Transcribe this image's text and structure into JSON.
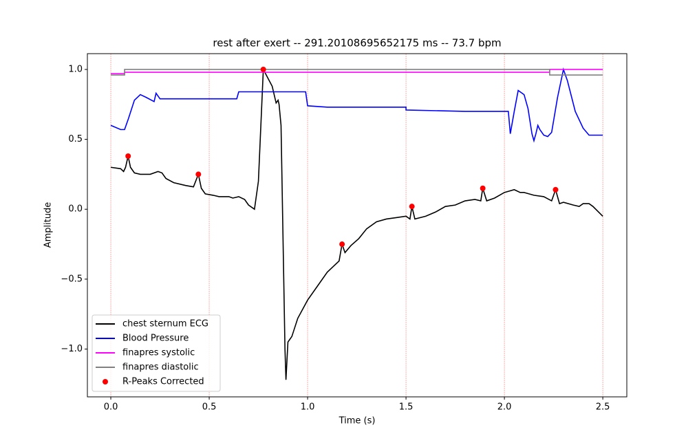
{
  "chart_data": {
    "type": "line",
    "title": "rest after exert  -- 291.20108695652175 ms -- 73.7 bpm",
    "x_label": "Time (s)",
    "y_label": "Amplitude",
    "xlim": [
      -0.119,
      2.622
    ],
    "ylim": [
      -1.342,
      1.113
    ],
    "xticks": [
      {
        "value": 0,
        "label": "0.0"
      },
      {
        "value": 0.5,
        "label": "0.5"
      },
      {
        "value": 1,
        "label": "1.0"
      },
      {
        "value": 1.5,
        "label": "1.5"
      },
      {
        "value": 2,
        "label": "2.0"
      },
      {
        "value": 2.5,
        "label": "2.5"
      }
    ],
    "yticks": [
      {
        "value": -1,
        "label": "−1.0"
      },
      {
        "value": -0.5,
        "label": "−0.5"
      },
      {
        "value": 0,
        "label": "0.0"
      },
      {
        "value": 0.5,
        "label": "0.5"
      },
      {
        "value": 1,
        "label": "1.0"
      }
    ],
    "grid": "x",
    "grid_color": "#ff9999",
    "legend": "lower left",
    "series": [
      {
        "name": "chest sternum ECG",
        "type": "line",
        "color": "#000000",
        "x": [
          0,
          0.05,
          0.065,
          0.075,
          0.088,
          0.1,
          0.12,
          0.15,
          0.2,
          0.24,
          0.26,
          0.28,
          0.32,
          0.38,
          0.42,
          0.445,
          0.46,
          0.48,
          0.52,
          0.55,
          0.6,
          0.62,
          0.65,
          0.68,
          0.7,
          0.72,
          0.73,
          0.75,
          0.775,
          0.79,
          0.82,
          0.84,
          0.85,
          0.855,
          0.865,
          0.875,
          0.885,
          0.89,
          0.9,
          0.91,
          0.92,
          0.95,
          1.0,
          1.05,
          1.1,
          1.13,
          1.16,
          1.175,
          1.19,
          1.22,
          1.26,
          1.3,
          1.35,
          1.4,
          1.45,
          1.5,
          1.52,
          1.53,
          1.545,
          1.6,
          1.65,
          1.7,
          1.75,
          1.8,
          1.85,
          1.88,
          1.89,
          1.91,
          1.95,
          2.0,
          2.05,
          2.08,
          2.1,
          2.15,
          2.2,
          2.24,
          2.26,
          2.28,
          2.3,
          2.35,
          2.38,
          2.4,
          2.43,
          2.45,
          2.5
        ],
        "values": [
          0.3,
          0.29,
          0.27,
          0.3,
          0.38,
          0.3,
          0.26,
          0.25,
          0.25,
          0.27,
          0.26,
          0.22,
          0.19,
          0.17,
          0.16,
          0.25,
          0.15,
          0.11,
          0.1,
          0.09,
          0.09,
          0.08,
          0.09,
          0.07,
          0.03,
          0.01,
          0.0,
          0.2,
          1.0,
          0.96,
          0.88,
          0.76,
          0.78,
          0.75,
          0.6,
          -0.2,
          -1.0,
          -1.22,
          -0.95,
          -0.93,
          -0.91,
          -0.78,
          -0.65,
          -0.55,
          -0.45,
          -0.41,
          -0.37,
          -0.25,
          -0.31,
          -0.26,
          -0.21,
          -0.14,
          -0.09,
          -0.07,
          -0.06,
          -0.05,
          -0.07,
          0.02,
          -0.07,
          -0.05,
          -0.02,
          0.02,
          0.03,
          0.06,
          0.07,
          0.06,
          0.15,
          0.06,
          0.08,
          0.12,
          0.14,
          0.12,
          0.12,
          0.1,
          0.09,
          0.06,
          0.14,
          0.04,
          0.05,
          0.03,
          0.02,
          0.04,
          0.04,
          0.02,
          -0.05
        ]
      },
      {
        "name": "Blood Pressure",
        "type": "line",
        "color": "#0000ff",
        "x": [
          0,
          0.05,
          0.07,
          0.09,
          0.12,
          0.15,
          0.18,
          0.22,
          0.23,
          0.25,
          0.3,
          0.5,
          0.64,
          0.65,
          0.7,
          0.99,
          1.0,
          1.1,
          1.5,
          1.5,
          1.8,
          2.02,
          2.03,
          2.05,
          2.07,
          2.1,
          2.12,
          2.14,
          2.15,
          2.16,
          2.17,
          2.18,
          2.2,
          2.22,
          2.24,
          2.27,
          2.3,
          2.32,
          2.36,
          2.4,
          2.43,
          2.5
        ],
        "values": [
          0.6,
          0.57,
          0.57,
          0.65,
          0.78,
          0.82,
          0.8,
          0.77,
          0.83,
          0.79,
          0.79,
          0.79,
          0.79,
          0.84,
          0.84,
          0.84,
          0.74,
          0.73,
          0.73,
          0.71,
          0.7,
          0.7,
          0.54,
          0.7,
          0.85,
          0.82,
          0.72,
          0.54,
          0.49,
          0.54,
          0.6,
          0.57,
          0.53,
          0.52,
          0.55,
          0.8,
          1.0,
          0.92,
          0.7,
          0.58,
          0.53,
          0.53
        ]
      },
      {
        "name": "finapres systolic",
        "type": "line",
        "color": "#ff00ff",
        "x": [
          0,
          0.07,
          0.07,
          2.23,
          2.23,
          2.5
        ],
        "values": [
          0.97,
          0.97,
          0.98,
          0.98,
          1.0,
          1.0
        ]
      },
      {
        "name": "finapres diastolic",
        "type": "line",
        "color": "#808080",
        "x": [
          0,
          0.07,
          0.07,
          2.23,
          2.23,
          2.5
        ],
        "values": [
          0.96,
          0.96,
          1.0,
          1.0,
          0.96,
          0.96
        ]
      },
      {
        "name": "R-Peaks Corrected",
        "type": "scatter",
        "color": "#ff0000",
        "x": [
          0.088,
          0.445,
          0.775,
          1.175,
          1.53,
          1.89,
          2.26
        ],
        "values": [
          0.38,
          0.25,
          1.0,
          -0.25,
          0.02,
          0.15,
          0.14
        ]
      }
    ]
  }
}
